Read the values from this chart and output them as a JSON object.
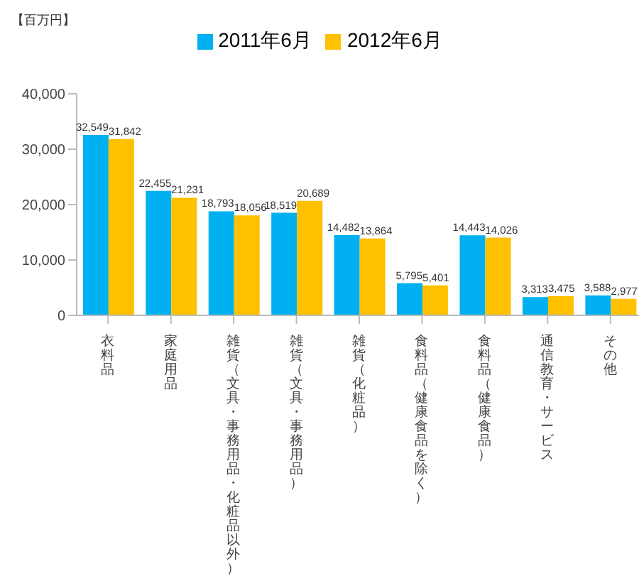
{
  "chart_data": {
    "type": "bar",
    "ylabel": "【百万円】",
    "categories": [
      "衣料品",
      "家庭用品",
      "雑貨（文具・事務用品・化粧品以外）",
      "雑貨（文具・事務用品）",
      "雑貨（化粧品）",
      "食料品（健康食品を除く）",
      "食料品（健康食品）",
      "通信教育・サービス",
      "その他"
    ],
    "series": [
      {
        "name": "2011年6月",
        "color": "#00b0f0",
        "values": [
          32549,
          22455,
          18793,
          18519,
          14482,
          5795,
          14443,
          3313,
          3588
        ],
        "value_labels": [
          "32,549",
          "22,455",
          "18,793",
          "18,519",
          "14,482",
          "5,795",
          "14,443",
          "3,313",
          "3,588"
        ]
      },
      {
        "name": "2012年6月",
        "color": "#ffc000",
        "values": [
          31842,
          21231,
          18056,
          20689,
          13864,
          5401,
          14026,
          3475,
          2977
        ],
        "value_labels": [
          "31,842",
          "21,231",
          "18,056",
          "20,689",
          "13,864",
          "5,401",
          "14,026",
          "3,475",
          "2,977"
        ]
      }
    ],
    "ylim": [
      0,
      40000
    ],
    "yticks": [
      0,
      {
        "value": 10000,
        "label": "10,000"
      },
      {
        "value": 20000,
        "label": "20,000"
      },
      {
        "value": 30000,
        "label": "30,000"
      },
      {
        "value": 40000,
        "label": "40,000"
      }
    ],
    "grid": false,
    "legend": "top"
  }
}
